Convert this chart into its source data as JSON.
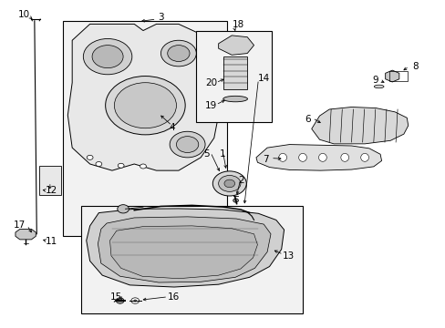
{
  "bg_color": "#ffffff",
  "fig_width": 4.89,
  "fig_height": 3.6,
  "dpi": 100,
  "label_fontsize": 7.5,
  "line_color": "#000000"
}
